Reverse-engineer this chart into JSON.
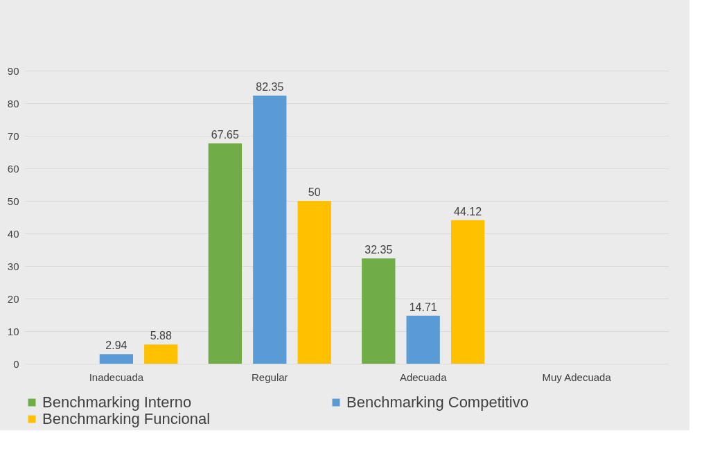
{
  "chart_data": {
    "type": "bar",
    "categories": [
      "Inadecuada",
      "Regular",
      "Adecuada",
      "Muy Adecuada"
    ],
    "series": [
      {
        "name": "Benchmarking Interno",
        "color": "#70ad47",
        "values": [
          0,
          67.65,
          32.35,
          0
        ],
        "value_labels": [
          null,
          "67.65",
          "32.35",
          null
        ]
      },
      {
        "name": "Benchmarking Competitivo",
        "color": "#5b9bd5",
        "values": [
          2.94,
          82.35,
          14.71,
          0
        ],
        "value_labels": [
          "2.94",
          "82.35",
          "14.71",
          null
        ]
      },
      {
        "name": "Benchmarking Funcional",
        "color": "#ffc000",
        "values": [
          5.88,
          50,
          44.12,
          0
        ],
        "value_labels": [
          "5.88",
          "50",
          "44.12",
          null
        ]
      }
    ],
    "ylim": [
      0,
      90
    ],
    "yticks": [
      0,
      10,
      20,
      30,
      40,
      50,
      60,
      70,
      80,
      90
    ],
    "grid": "y",
    "legend": "bottom"
  }
}
